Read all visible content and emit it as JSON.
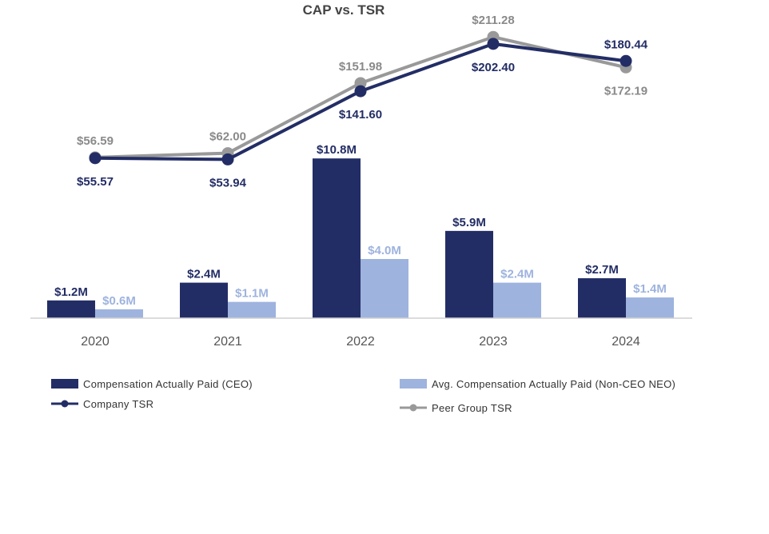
{
  "chart_data": {
    "type": "bar+line",
    "title": "CAP vs. TSR",
    "categories": [
      "2020",
      "2021",
      "2022",
      "2023",
      "2024"
    ],
    "bar_series": [
      {
        "name": "Compensation Actually Paid (CEO)",
        "values": [
          1.2,
          2.4,
          10.8,
          5.9,
          2.7
        ],
        "labels": [
          "$1.2M",
          "$2.4M",
          "$10.8M",
          "$5.9M",
          "$2.7M"
        ],
        "color": "#232D65"
      },
      {
        "name": "Avg. Compensation Actually Paid (Non-CEO NEO)",
        "values": [
          0.6,
          1.1,
          4.0,
          2.4,
          1.4
        ],
        "labels": [
          "$0.6M",
          "$1.1M",
          "$4.0M",
          "$2.4M",
          "$1.4M"
        ],
        "color": "#9EB3DE"
      }
    ],
    "line_series": [
      {
        "name": "Company TSR",
        "values": [
          55.57,
          53.94,
          141.6,
          202.4,
          180.44
        ],
        "labels": [
          "$55.57",
          "$53.94",
          "$141.60",
          "$202.40",
          "$180.44"
        ],
        "color": "#232D65"
      },
      {
        "name": "Peer Group TSR",
        "values": [
          56.59,
          62.0,
          151.98,
          211.28,
          172.19
        ],
        "labels": [
          "$56.59",
          "$62.00",
          "$151.98",
          "$211.28",
          "$172.19"
        ],
        "color": "#999999"
      }
    ],
    "bar_axis_range": [
      0,
      20
    ],
    "line_axis_range": [
      -150,
      230
    ],
    "grid": false,
    "legend_position": "bottom"
  }
}
